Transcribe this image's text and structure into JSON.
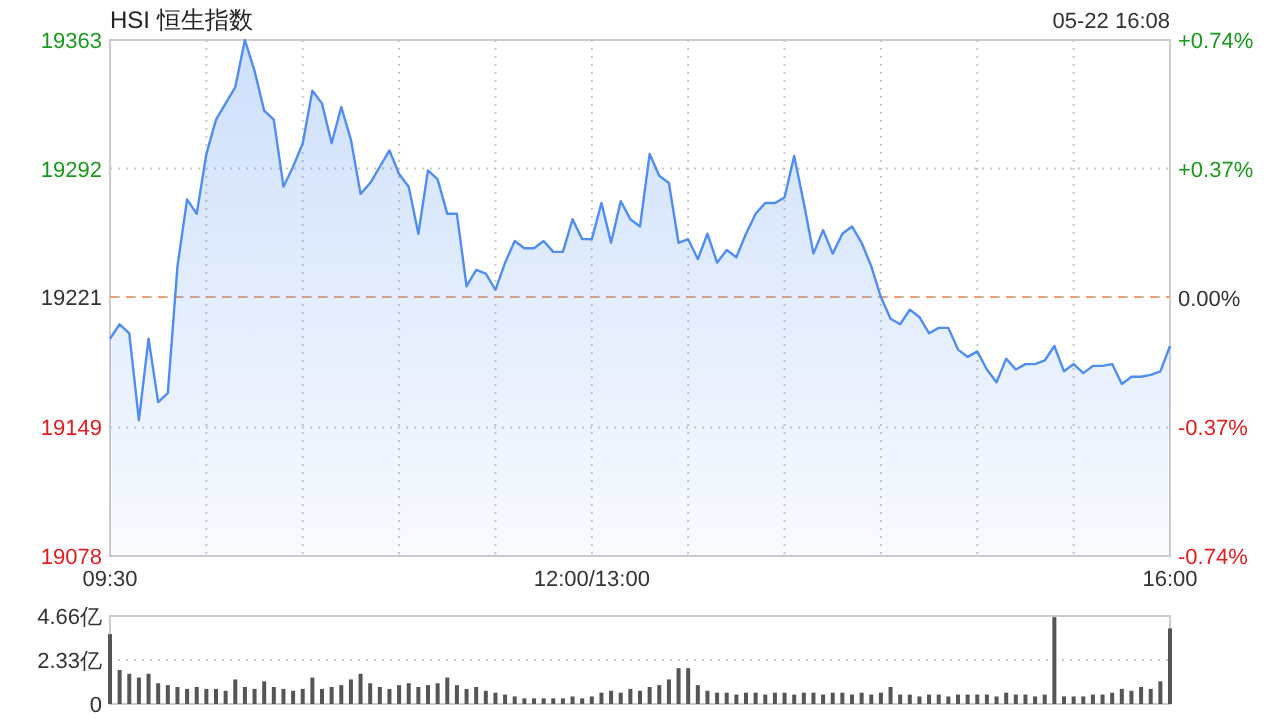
{
  "chart_data": [
    {
      "type": "area",
      "title": "HSI 恒生指数",
      "subtitle": "05-22 16:08",
      "categories": [
        "09:30",
        null,
        null,
        null,
        null,
        null,
        null,
        null,
        null,
        null,
        null,
        null,
        null,
        null,
        null,
        null,
        null,
        null,
        null,
        null,
        null,
        null,
        null,
        null,
        null,
        null,
        null,
        null,
        null,
        null,
        null,
        null,
        null,
        null,
        null,
        null,
        null,
        null,
        null,
        null,
        null,
        null,
        null,
        null,
        null,
        null,
        null,
        null,
        null,
        null,
        "12:00/13:00",
        null,
        null,
        null,
        null,
        null,
        null,
        null,
        null,
        null,
        null,
        null,
        null,
        null,
        null,
        null,
        null,
        null,
        null,
        null,
        null,
        null,
        null,
        null,
        null,
        null,
        null,
        null,
        null,
        null,
        null,
        null,
        null,
        null,
        null,
        null,
        null,
        null,
        null,
        null,
        null,
        null,
        null,
        null,
        null,
        null,
        null,
        null,
        null,
        null,
        null,
        null,
        null,
        null,
        null,
        null,
        null,
        null,
        null,
        null,
        "16:00"
      ],
      "ylim": [
        19078,
        19363
      ],
      "yticks": [
        19078,
        19149,
        19221,
        19292,
        19363
      ],
      "y2lim": [
        -0.74,
        0.74
      ],
      "y2ticks": [
        {
          "value": -0.74,
          "label": "-0.74%"
        },
        {
          "value": -0.37,
          "label": "-0.37%"
        },
        {
          "value": 0,
          "label": "0.00%"
        },
        {
          "value": 0.37,
          "label": "+0.37%"
        },
        {
          "value": 0.74,
          "label": "+0.74%"
        }
      ],
      "grid": true,
      "ref_lines": [
        {
          "axis": "y",
          "value": 19221,
          "color": "#f0a070",
          "line_style": "dashed"
        }
      ],
      "series": [
        {
          "color": "#4f8ef0",
          "values": [
            19198,
            19206,
            19201,
            19153,
            19198,
            19163,
            19168,
            19238,
            19275,
            19267,
            19300,
            19319,
            19328,
            19337,
            19363,
            19346,
            19324,
            19319,
            19282,
            19293,
            19306,
            19335,
            19328,
            19306,
            19326,
            19308,
            19278,
            19284,
            19293,
            19302,
            19289,
            19282,
            19256,
            19291,
            19286,
            19267,
            19267,
            19227,
            19236,
            19234,
            19225,
            19240,
            19252,
            19248,
            19248,
            19252,
            19246,
            19246,
            19264,
            19253,
            19253,
            19273,
            19251,
            19274,
            19264,
            19260,
            19300,
            19288,
            19284,
            19251,
            19253,
            19242,
            19256,
            19240,
            19247,
            19243,
            19256,
            19267,
            19273,
            19273,
            19276,
            19299,
            19273,
            19245,
            19258,
            19245,
            19256,
            19260,
            19251,
            19238,
            19221,
            19209,
            19206,
            19214,
            19210,
            19201,
            19204,
            19204,
            19192,
            19188,
            19191,
            19181,
            19174,
            19187,
            19181,
            19184,
            19184,
            19186,
            19194,
            19180,
            19184,
            19179,
            19183,
            19183,
            19184,
            19173,
            19177,
            19177,
            19178,
            19180,
            19194
          ]
        }
      ]
    },
    {
      "type": "bar",
      "ylim": [
        0,
        4.66
      ],
      "yticks": [
        0,
        {
          "value": 2.33,
          "label": "2.33亿"
        },
        {
          "value": 4.66,
          "label": "4.66亿"
        }
      ],
      "grid": "y",
      "tick_labels": "y",
      "categories": [
        null,
        null,
        null,
        null,
        null,
        null,
        null,
        null,
        null,
        null,
        null,
        null,
        null,
        null,
        null,
        null,
        null,
        null,
        null,
        null,
        null,
        null,
        null,
        null,
        null,
        null,
        null,
        null,
        null,
        null,
        null,
        null,
        null,
        null,
        null,
        null,
        null,
        null,
        null,
        null,
        null,
        null,
        null,
        null,
        null,
        null,
        null,
        null,
        null,
        null,
        null,
        null,
        null,
        null,
        null,
        null,
        null,
        null,
        null,
        null,
        null,
        null,
        null,
        null,
        null,
        null,
        null,
        null,
        null,
        null,
        null,
        null,
        null,
        null,
        null,
        null,
        null,
        null,
        null,
        null,
        null,
        null,
        null,
        null,
        null,
        null,
        null,
        null,
        null,
        null,
        null,
        null,
        null,
        null,
        null,
        null,
        null,
        null,
        null,
        null,
        null,
        null,
        null,
        null,
        null,
        null,
        null,
        null,
        null,
        null,
        null
      ],
      "series": [
        {
          "color": "#555555",
          "values": [
            3.7,
            1.8,
            1.6,
            1.4,
            1.6,
            1.1,
            1.0,
            0.9,
            0.8,
            0.9,
            0.8,
            0.8,
            0.7,
            1.3,
            0.9,
            0.8,
            1.2,
            0.9,
            0.8,
            0.7,
            0.8,
            1.4,
            0.8,
            0.9,
            1.0,
            1.3,
            1.6,
            1.1,
            0.9,
            0.8,
            1.0,
            1.1,
            0.9,
            1.0,
            1.1,
            1.4,
            1.0,
            0.8,
            0.9,
            0.7,
            0.6,
            0.5,
            0.4,
            0.3,
            0.3,
            0.3,
            0.3,
            0.3,
            0.4,
            0.3,
            0.4,
            0.6,
            0.7,
            0.6,
            0.8,
            0.7,
            0.9,
            1.0,
            1.3,
            1.9,
            1.9,
            1.0,
            0.7,
            0.6,
            0.6,
            0.5,
            0.6,
            0.6,
            0.5,
            0.6,
            0.6,
            0.5,
            0.6,
            0.6,
            0.5,
            0.6,
            0.6,
            0.5,
            0.6,
            0.5,
            0.6,
            0.9,
            0.5,
            0.5,
            0.4,
            0.5,
            0.5,
            0.4,
            0.5,
            0.5,
            0.5,
            0.5,
            0.4,
            0.6,
            0.5,
            0.5,
            0.4,
            0.5,
            4.6,
            0.4,
            0.4,
            0.4,
            0.5,
            0.5,
            0.6,
            0.8,
            0.7,
            0.9,
            0.8,
            1.2,
            4.0
          ]
        }
      ]
    }
  ]
}
